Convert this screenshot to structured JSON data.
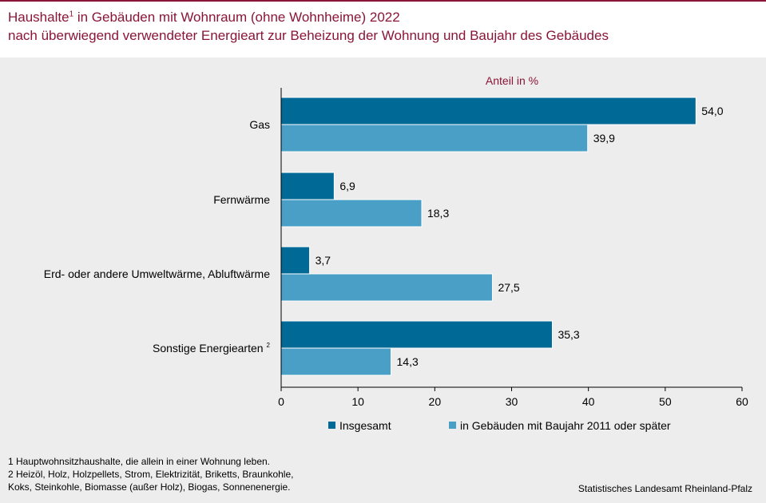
{
  "header": {
    "title_prefix": "Haushalte",
    "title_sup": "1",
    "title_rest": " in Gebäuden mit Wohnraum (ohne Wohnheime) 2022",
    "title_line2": "nach überwiegend verwendeter Energieart zur Beheizung der Wohnung und Baujahr des Gebäudes"
  },
  "colors": {
    "title": "#8a1538",
    "series_1": "#006996",
    "series_2": "#4a9fc6",
    "background": "#ededed"
  },
  "chart_data": {
    "type": "bar",
    "orientation": "horizontal",
    "unit_label": "Anteil in %",
    "categories": [
      "Gas",
      "Fernwärme",
      "Erd- oder andere Umweltwärme, Abluftwärme",
      "Sonstige Energiearten"
    ],
    "category_superscripts": [
      "",
      "",
      "",
      "2"
    ],
    "series": [
      {
        "name": "Insgesamt",
        "values": [
          54.0,
          6.9,
          3.7,
          35.3
        ],
        "labels": [
          "54,0",
          "6,9",
          "3,7",
          "35,3"
        ]
      },
      {
        "name": "in Gebäuden mit Baujahr 2011 oder später",
        "values": [
          39.9,
          18.3,
          27.5,
          14.3
        ],
        "labels": [
          "39,9",
          "18,3",
          "27,5",
          "14,3"
        ]
      }
    ],
    "xlim": [
      0,
      60
    ],
    "xticks": [
      0,
      10,
      20,
      30,
      40,
      50,
      60
    ],
    "grid": false,
    "legend_position": "bottom"
  },
  "footnotes": [
    "1 Hauptwohnsitzhaushalte, die allein in einer Wohnung leben.",
    "2 Heizöl, Holz, Holzpellets, Strom, Elektrizität, Briketts, Braunkohle,",
    "Koks, Steinkohle, Biomasse (außer Holz), Biogas, Sonnenenergie."
  ],
  "source": "Statistisches Landesamt Rheinland-Pfalz"
}
